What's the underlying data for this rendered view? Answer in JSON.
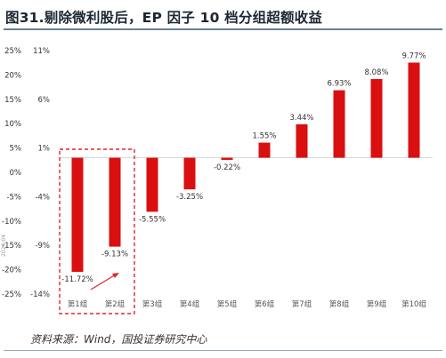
{
  "title": "图31.剔除微利股后，EP 因子 10 档分组超额收益",
  "source": "资料来源：Wind，国投证券研究中心",
  "colors": {
    "bar": "#d9100f",
    "highlight_box": "#e0262a",
    "arrow": "#e0262a",
    "text": "#333333",
    "grid": "#e6e6e6"
  },
  "chart_data": {
    "type": "bar",
    "title": "图31.剔除微利股后，EP 因子 10 档分组超额收益",
    "categories": [
      "第1组",
      "第2组",
      "第3组",
      "第4组",
      "第5组",
      "第6组",
      "第7组",
      "第8组",
      "第9组",
      "第10组"
    ],
    "values": [
      -11.72,
      -9.13,
      -5.55,
      -3.25,
      -0.22,
      1.55,
      3.44,
      6.93,
      8.08,
      9.77
    ],
    "data_labels": [
      "-11.72%",
      "-9.13%",
      "-5.55%",
      "-3.25%",
      "-0.22%",
      "1.55%",
      "3.44%",
      "6.93%",
      "8.08%",
      "9.77%"
    ],
    "left_axis": {
      "ticks": [
        "25%",
        "20%",
        "15%",
        "10%",
        "5%",
        "0%",
        "-5%",
        "-10%",
        "-15%",
        "-20%",
        "-25%"
      ],
      "range": [
        -25,
        25
      ]
    },
    "inner_axis": {
      "ticks": [
        "11%",
        "6%",
        "1%",
        "-4%",
        "-9%",
        "-14%"
      ],
      "ylim": [
        -14,
        11
      ]
    },
    "grid": true,
    "highlight_groups": [
      "第1组",
      "第2组"
    ]
  }
}
